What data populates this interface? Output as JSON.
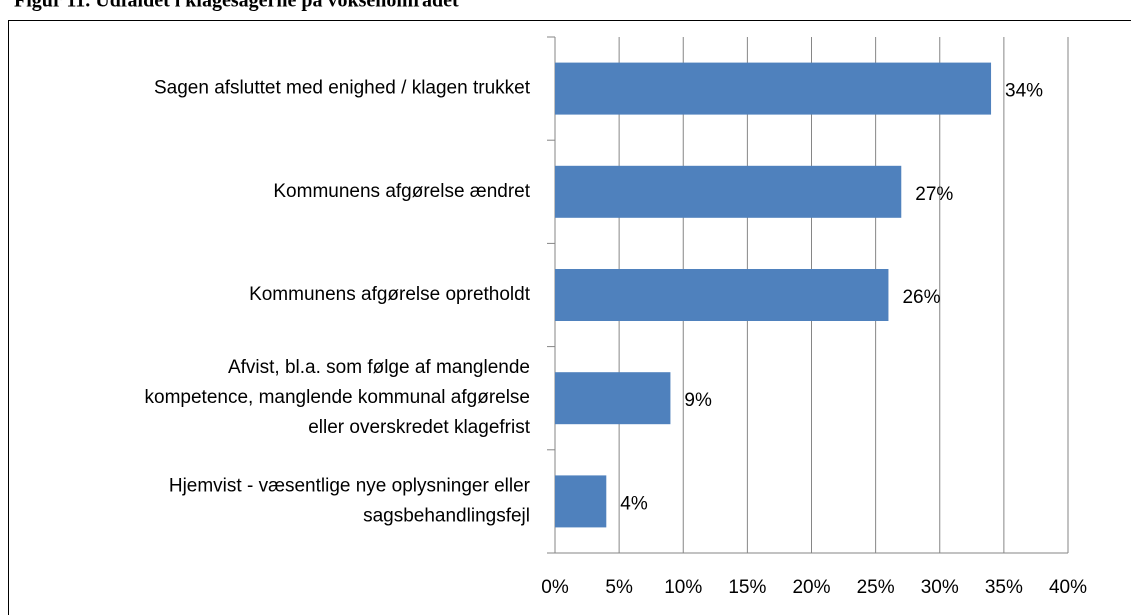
{
  "chart_data": {
    "type": "bar",
    "orientation": "horizontal",
    "title": "Figur 11. Udfaldet i klagesagerne på voksenområdet",
    "categories": [
      "Sagen afsluttet med enighed / klagen trukket",
      "Kommunens afgørelse ændret",
      "Kommunens afgørelse opretholdt",
      "Afvist, bl.a. som følge af manglende\nkompetence, manglende kommunal afgørelse\neller overskredet klagefrist",
      "Hjemvist - væsentlige nye oplysninger eller\nsagsbehandlingsfejl"
    ],
    "values": [
      34,
      27,
      26,
      9,
      4
    ],
    "value_labels": [
      "34%",
      "27%",
      "26%",
      "9%",
      "4%"
    ],
    "color": "#4f81bd",
    "xlim": [
      0,
      40
    ],
    "xticks": [
      {
        "value": 0,
        "label": "0%"
      },
      {
        "value": 5,
        "label": "5%"
      },
      {
        "value": 10,
        "label": "10%"
      },
      {
        "value": 15,
        "label": "15%"
      },
      {
        "value": 20,
        "label": "20%"
      },
      {
        "value": 25,
        "label": "25%"
      },
      {
        "value": 30,
        "label": "30%"
      },
      {
        "value": 35,
        "label": "35%"
      },
      {
        "value": 40,
        "label": "40%"
      }
    ],
    "grid": true
  }
}
